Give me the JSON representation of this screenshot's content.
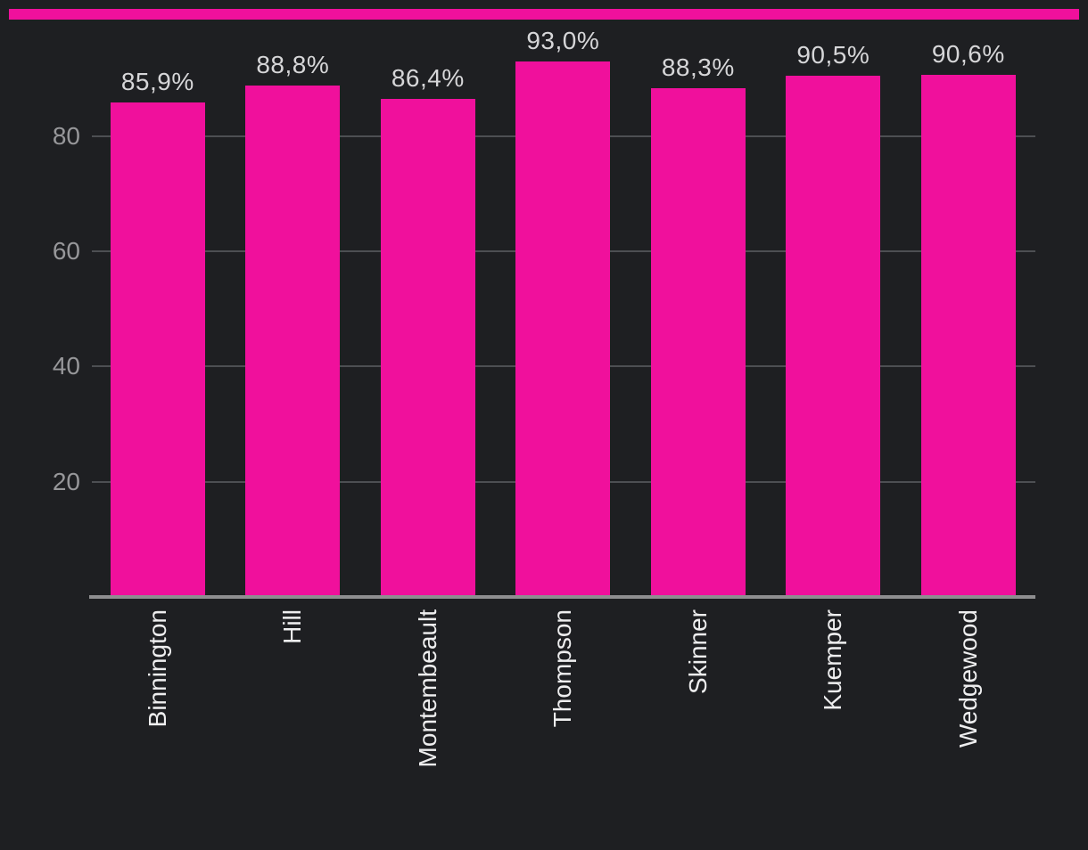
{
  "page": {
    "background_color": "#1e1f22",
    "accent_color": "#f0109c"
  },
  "chart_data": {
    "type": "bar",
    "title": "",
    "xlabel": "",
    "ylabel": "",
    "categories": [
      "Binnington",
      "Hill",
      "Montembeault",
      "Thompson",
      "Skinner",
      "Kuemper",
      "Wedgewood"
    ],
    "values": [
      85.9,
      88.8,
      86.4,
      93.0,
      88.3,
      90.5,
      90.6
    ],
    "value_labels": [
      "85,9%",
      "88,8%",
      "86,4%",
      "93,0%",
      "88,3%",
      "90,5%",
      "90,6%"
    ],
    "y_ticks": [
      20,
      40,
      60,
      80
    ],
    "y_tick_labels": [
      "20",
      "40",
      "60",
      "80"
    ],
    "ylim": [
      0,
      100
    ],
    "grid": true,
    "legend": false,
    "x_label_rotation_deg": -90,
    "decimal_separator": ",",
    "bar_color": "#f0109c",
    "grid_color": "#4d4f53",
    "axis_line_color": "#8e8e90",
    "tick_label_color": "#97979a",
    "value_label_color": "#d6d6d8",
    "category_label_color": "#eeeeef",
    "background_color": "#1e1f22"
  }
}
